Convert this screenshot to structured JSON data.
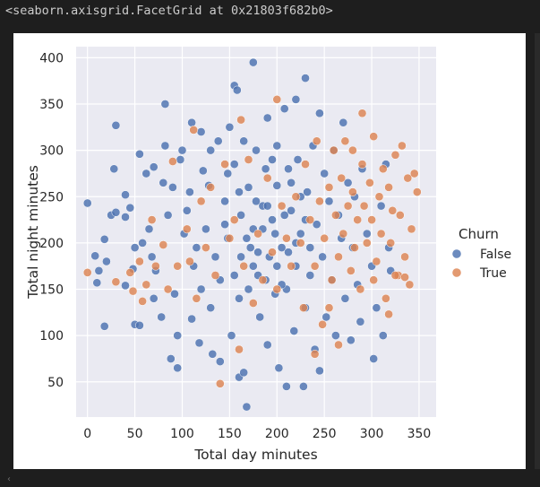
{
  "output": {
    "repr_text": "<seaborn.axisgrid.FacetGrid at 0x21803f682b0>"
  },
  "colors": {
    "background": "#1e1e1e",
    "panel": "#ffffff",
    "axes_facecolor": "#eaeaf2",
    "grid": "#ffffff",
    "false_color": "#4c72b0",
    "true_color": "#dd8452"
  },
  "chart_data": {
    "type": "scatter",
    "title": "",
    "xlabel": "Total day minutes",
    "ylabel": "Total night minutes",
    "xlim": [
      -12,
      368
    ],
    "ylim": [
      12,
      412
    ],
    "xticks": [
      0,
      50,
      100,
      150,
      200,
      250,
      300,
      350
    ],
    "yticks": [
      50,
      100,
      150,
      200,
      250,
      300,
      350,
      400
    ],
    "grid": true,
    "legend": {
      "title": "Churn",
      "placement": "right-outside",
      "entries": [
        "False",
        "True"
      ]
    },
    "series": [
      {
        "name": "False",
        "color": "#4c72b0",
        "points": [
          [
            0,
            243
          ],
          [
            8,
            186
          ],
          [
            10,
            157
          ],
          [
            12,
            170
          ],
          [
            18,
            110
          ],
          [
            18,
            204
          ],
          [
            20,
            180
          ],
          [
            25,
            230
          ],
          [
            28,
            280
          ],
          [
            30,
            327
          ],
          [
            30,
            233
          ],
          [
            40,
            228
          ],
          [
            40,
            252
          ],
          [
            40,
            154
          ],
          [
            45,
            238
          ],
          [
            48,
            172
          ],
          [
            50,
            195
          ],
          [
            50,
            112
          ],
          [
            55,
            296
          ],
          [
            55,
            111
          ],
          [
            58,
            200
          ],
          [
            62,
            275
          ],
          [
            65,
            215
          ],
          [
            68,
            185
          ],
          [
            70,
            282
          ],
          [
            70,
            140
          ],
          [
            72,
            170
          ],
          [
            78,
            120
          ],
          [
            80,
            265
          ],
          [
            82,
            350
          ],
          [
            82,
            305
          ],
          [
            85,
            230
          ],
          [
            88,
            75
          ],
          [
            90,
            260
          ],
          [
            92,
            145
          ],
          [
            95,
            100
          ],
          [
            95,
            65
          ],
          [
            98,
            290
          ],
          [
            100,
            300
          ],
          [
            102,
            210
          ],
          [
            105,
            235
          ],
          [
            108,
            255
          ],
          [
            110,
            118
          ],
          [
            110,
            330
          ],
          [
            112,
            175
          ],
          [
            115,
            195
          ],
          [
            118,
            92
          ],
          [
            120,
            320
          ],
          [
            120,
            150
          ],
          [
            122,
            278
          ],
          [
            125,
            215
          ],
          [
            128,
            262
          ],
          [
            130,
            300
          ],
          [
            130,
            130
          ],
          [
            132,
            80
          ],
          [
            135,
            185
          ],
          [
            138,
            310
          ],
          [
            140,
            160
          ],
          [
            140,
            72
          ],
          [
            145,
            245
          ],
          [
            148,
            205
          ],
          [
            150,
            325
          ],
          [
            152,
            100
          ],
          [
            155,
            370
          ],
          [
            155,
            285
          ],
          [
            158,
            365
          ],
          [
            160,
            140
          ],
          [
            160,
            55
          ],
          [
            162,
            230
          ],
          [
            165,
            60
          ],
          [
            165,
            310
          ],
          [
            168,
            23
          ],
          [
            170,
            260
          ],
          [
            172,
            195
          ],
          [
            175,
            395
          ],
          [
            175,
            215
          ],
          [
            178,
            300
          ],
          [
            180,
            165
          ],
          [
            182,
            120
          ],
          [
            185,
            240
          ],
          [
            188,
            280
          ],
          [
            190,
            335
          ],
          [
            190,
            90
          ],
          [
            192,
            185
          ],
          [
            195,
            225
          ],
          [
            198,
            145
          ],
          [
            200,
            305
          ],
          [
            200,
            262
          ],
          [
            202,
            65
          ],
          [
            205,
            195
          ],
          [
            208,
            345
          ],
          [
            210,
            45
          ],
          [
            210,
            150
          ],
          [
            212,
            280
          ],
          [
            215,
            235
          ],
          [
            218,
            105
          ],
          [
            220,
            355
          ],
          [
            220,
            175
          ],
          [
            222,
            290
          ],
          [
            225,
            210
          ],
          [
            228,
            45
          ],
          [
            230,
            378
          ],
          [
            230,
            130
          ],
          [
            232,
            255
          ],
          [
            235,
            165
          ],
          [
            238,
            305
          ],
          [
            240,
            85
          ],
          [
            242,
            220
          ],
          [
            245,
            340
          ],
          [
            245,
            62
          ],
          [
            248,
            185
          ],
          [
            250,
            275
          ],
          [
            252,
            120
          ],
          [
            255,
            245
          ],
          [
            258,
            160
          ],
          [
            260,
            300
          ],
          [
            262,
            100
          ],
          [
            265,
            230
          ],
          [
            268,
            205
          ],
          [
            270,
            330
          ],
          [
            272,
            140
          ],
          [
            275,
            265
          ],
          [
            278,
            95
          ],
          [
            280,
            195
          ],
          [
            282,
            250
          ],
          [
            285,
            155
          ],
          [
            288,
            115
          ],
          [
            290,
            280
          ],
          [
            295,
            210
          ],
          [
            300,
            175
          ],
          [
            302,
            75
          ],
          [
            305,
            130
          ],
          [
            310,
            240
          ],
          [
            312,
            100
          ],
          [
            315,
            285
          ],
          [
            318,
            195
          ],
          [
            320,
            170
          ],
          [
            148,
            275
          ],
          [
            162,
            185
          ],
          [
            178,
            245
          ],
          [
            188,
            160
          ],
          [
            198,
            210
          ],
          [
            208,
            230
          ],
          [
            168,
            205
          ],
          [
            155,
            165
          ],
          [
            212,
            190
          ],
          [
            225,
            250
          ],
          [
            235,
            195
          ],
          [
            145,
            220
          ],
          [
            200,
            175
          ],
          [
            185,
            215
          ],
          [
            170,
            150
          ],
          [
            215,
            265
          ],
          [
            190,
            240
          ],
          [
            160,
            255
          ],
          [
            230,
            225
          ],
          [
            205,
            155
          ],
          [
            175,
            175
          ],
          [
            195,
            290
          ],
          [
            220,
            200
          ],
          [
            180,
            190
          ]
        ]
      },
      {
        "name": "True",
        "color": "#dd8452",
        "points": [
          [
            0,
            168
          ],
          [
            30,
            158
          ],
          [
            45,
            168
          ],
          [
            48,
            148
          ],
          [
            55,
            180
          ],
          [
            58,
            137
          ],
          [
            62,
            155
          ],
          [
            68,
            225
          ],
          [
            72,
            175
          ],
          [
            80,
            198
          ],
          [
            85,
            150
          ],
          [
            90,
            288
          ],
          [
            95,
            175
          ],
          [
            105,
            215
          ],
          [
            108,
            180
          ],
          [
            112,
            322
          ],
          [
            115,
            140
          ],
          [
            120,
            245
          ],
          [
            125,
            195
          ],
          [
            130,
            260
          ],
          [
            135,
            165
          ],
          [
            140,
            48
          ],
          [
            145,
            285
          ],
          [
            150,
            205
          ],
          [
            155,
            225
          ],
          [
            160,
            85
          ],
          [
            162,
            333
          ],
          [
            165,
            175
          ],
          [
            170,
            290
          ],
          [
            175,
            135
          ],
          [
            180,
            210
          ],
          [
            185,
            160
          ],
          [
            190,
            270
          ],
          [
            195,
            190
          ],
          [
            200,
            150
          ],
          [
            200,
            355
          ],
          [
            205,
            240
          ],
          [
            210,
            205
          ],
          [
            215,
            175
          ],
          [
            220,
            250
          ],
          [
            225,
            200
          ],
          [
            228,
            130
          ],
          [
            230,
            285
          ],
          [
            235,
            225
          ],
          [
            240,
            175
          ],
          [
            242,
            310
          ],
          [
            245,
            245
          ],
          [
            250,
            205
          ],
          [
            255,
            260
          ],
          [
            258,
            160
          ],
          [
            260,
            300
          ],
          [
            262,
            230
          ],
          [
            265,
            185
          ],
          [
            268,
            270
          ],
          [
            270,
            210
          ],
          [
            272,
            310
          ],
          [
            275,
            240
          ],
          [
            278,
            170
          ],
          [
            280,
            255
          ],
          [
            282,
            195
          ],
          [
            285,
            225
          ],
          [
            288,
            150
          ],
          [
            290,
            285
          ],
          [
            292,
            240
          ],
          [
            295,
            200
          ],
          [
            298,
            265
          ],
          [
            300,
            225
          ],
          [
            302,
            160
          ],
          [
            305,
            180
          ],
          [
            308,
            250
          ],
          [
            310,
            210
          ],
          [
            312,
            280
          ],
          [
            315,
            140
          ],
          [
            318,
            260
          ],
          [
            320,
            200
          ],
          [
            322,
            235
          ],
          [
            325,
            295
          ],
          [
            328,
            165
          ],
          [
            330,
            230
          ],
          [
            332,
            305
          ],
          [
            335,
            185
          ],
          [
            338,
            270
          ],
          [
            340,
            155
          ],
          [
            342,
            215
          ],
          [
            345,
            275
          ],
          [
            348,
            255
          ],
          [
            318,
            123
          ],
          [
            325,
            165
          ],
          [
            335,
            163
          ],
          [
            302,
            315
          ],
          [
            290,
            340
          ],
          [
            280,
            300
          ],
          [
            265,
            90
          ],
          [
            255,
            130
          ],
          [
            248,
            112
          ],
          [
            240,
            80
          ]
        ]
      }
    ]
  }
}
